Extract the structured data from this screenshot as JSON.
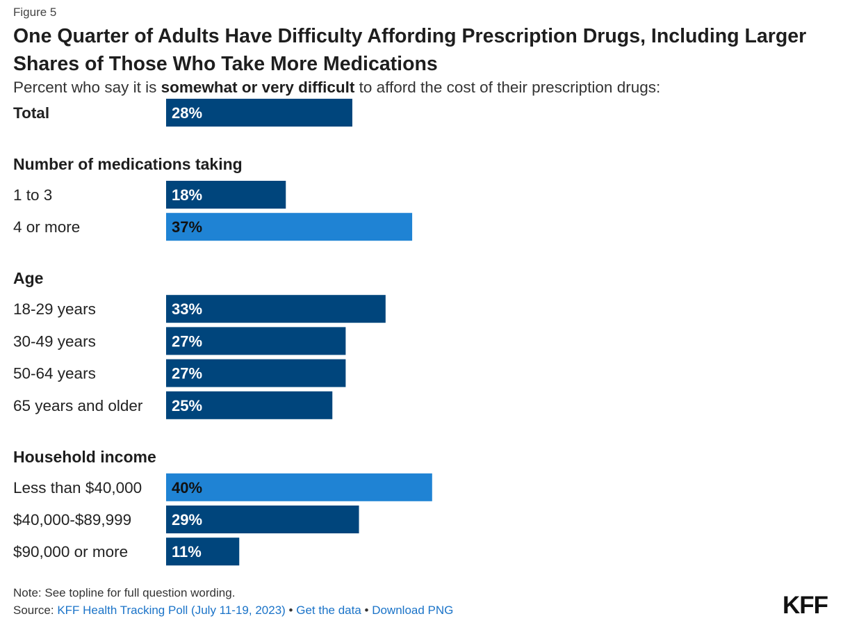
{
  "figure_label": "Figure 5",
  "title": "One Quarter of Adults Have Difficulty Affording Prescription Drugs, Including Larger Shares of Those Who Take More Medications",
  "subtitle": {
    "prefix": "Percent who say it is ",
    "emphasis": "somewhat or very difficult",
    "suffix": " to afford the cost of their prescription drugs:"
  },
  "colors": {
    "dark_bar": "#00457c",
    "light_bar": "#1f83d4",
    "dark_label": "#ffffff",
    "light_label": "#111111"
  },
  "chart_data": {
    "type": "bar",
    "orientation": "horizontal",
    "unit": "%",
    "xlim": [
      0,
      100
    ],
    "groups": [
      {
        "name": "",
        "rows": [
          {
            "label": "Total",
            "value": 28,
            "highlight": false,
            "bold": true
          }
        ]
      },
      {
        "name": "Number of medications taking",
        "rows": [
          {
            "label": "1 to 3",
            "value": 18,
            "highlight": false
          },
          {
            "label": "4 or more",
            "value": 37,
            "highlight": true
          }
        ]
      },
      {
        "name": "Age",
        "rows": [
          {
            "label": "18-29 years",
            "value": 33,
            "highlight": false
          },
          {
            "label": "30-49 years",
            "value": 27,
            "highlight": false
          },
          {
            "label": "50-64 years",
            "value": 27,
            "highlight": false
          },
          {
            "label": "65 years and older",
            "value": 25,
            "highlight": false
          }
        ]
      },
      {
        "name": "Household income",
        "rows": [
          {
            "label": "Less than $40,000",
            "value": 40,
            "highlight": true
          },
          {
            "label": "$40,000-$89,999",
            "value": 29,
            "highlight": false
          },
          {
            "label": "$90,000 or more",
            "value": 11,
            "highlight": false
          }
        ]
      }
    ]
  },
  "footer": {
    "note": "Note: See topline for full question wording.",
    "source_prefix": "Source: ",
    "source_link": "KFF Health Tracking Poll (July 11-19, 2023)",
    "separator1": " • ",
    "get_data": "Get the data",
    "separator2": " • ",
    "download": "Download PNG"
  },
  "logo": "KFF"
}
